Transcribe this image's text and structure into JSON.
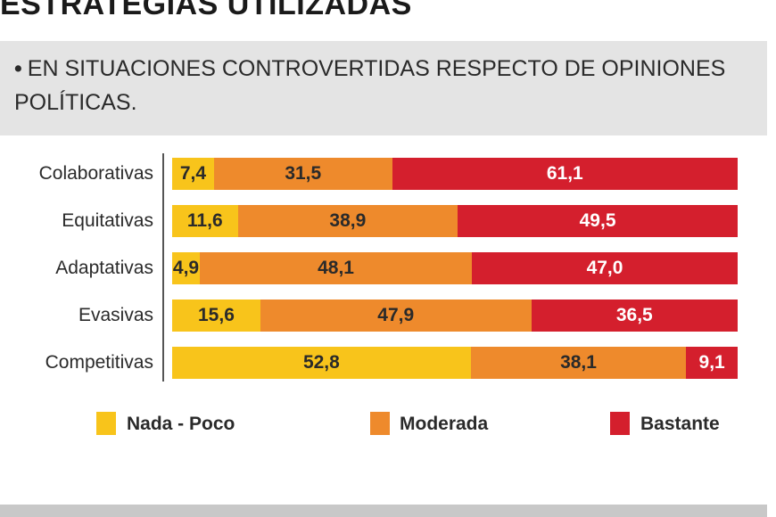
{
  "colors": {
    "nada_poco": "#f8c41b",
    "moderada": "#ee8a2c",
    "bastante": "#d41f2d"
  },
  "chart_data": {
    "type": "bar",
    "orientation": "horizontal",
    "stacked": true,
    "title": "ESTRATEGIAS UTILIZADAS",
    "subtitle": "EN SITUACIONES CONTROVERTIDAS RESPECTO DE OPINIONES POLÍTICAS.",
    "subtitle_bullet": "•",
    "categories": [
      "Colaborativas",
      "Equitativas",
      "Adaptativas",
      "Evasivas",
      "Competitivas"
    ],
    "series": [
      {
        "name": "Nada - Poco",
        "key": "nada_poco",
        "values": [
          7.4,
          11.6,
          4.9,
          15.6,
          52.8
        ],
        "labels": [
          "7,4",
          "11,6",
          "4,9",
          "15,6",
          "52,8"
        ]
      },
      {
        "name": "Moderada",
        "key": "moderada",
        "values": [
          31.5,
          38.9,
          48.1,
          47.9,
          38.1
        ],
        "labels": [
          "31,5",
          "38,9",
          "48,1",
          "47,9",
          "38,1"
        ]
      },
      {
        "name": "Bastante",
        "key": "bastante",
        "values": [
          61.1,
          49.5,
          47.0,
          36.5,
          9.1
        ],
        "labels": [
          "61,1",
          "49,5",
          "47,0",
          "36,5",
          "9,1"
        ]
      }
    ],
    "xlim": [
      0,
      100
    ],
    "grid": false,
    "legend": "bottom"
  }
}
